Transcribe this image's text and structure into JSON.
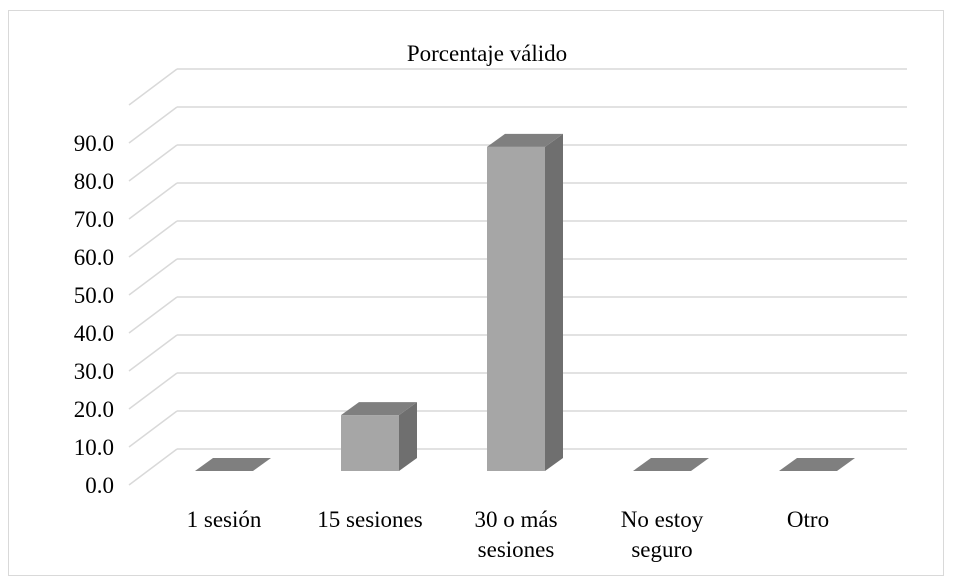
{
  "chart_data": {
    "type": "bar",
    "title": "Porcentaje válido",
    "categories": [
      [
        "1 sesión"
      ],
      [
        "15 sesiones"
      ],
      [
        "30 o más",
        "sesiones"
      ],
      [
        "No estoy",
        "seguro"
      ],
      [
        "Otro"
      ]
    ],
    "values": [
      0.0,
      14.7,
      85.3,
      0.0,
      0.0
    ],
    "ylim": [
      0,
      90
    ],
    "yticks": [
      "0.0",
      "10.0",
      "20.0",
      "30.0",
      "40.0",
      "50.0",
      "60.0",
      "70.0",
      "80.0",
      "90.0"
    ],
    "ytick_values": [
      0,
      10,
      20,
      30,
      40,
      50,
      60,
      70,
      80,
      90
    ],
    "grid": true,
    "bar_colors": {
      "front": "#a6a6a6",
      "side": "#6f6f6f",
      "top": "#7f7f7f"
    }
  }
}
